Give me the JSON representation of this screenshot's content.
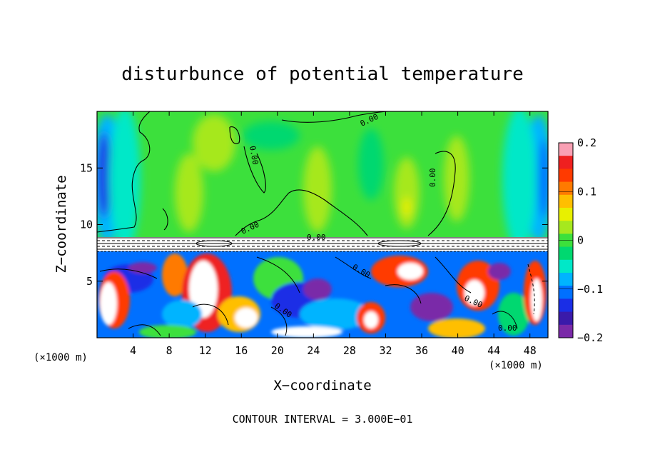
{
  "chart_data": {
    "type": "heatmap",
    "title": "disturbunce of potential temperature",
    "xlabel": "X−coordinate",
    "ylabel": "Z−coordinate",
    "x_unit_left": "(×1000 m)",
    "x_unit_right": "(×1000 m)",
    "footnote": "CONTOUR INTERVAL = 3.000E−01",
    "xlim": [
      0,
      50
    ],
    "ylim": [
      0,
      20
    ],
    "x_ticks": [
      4,
      8,
      12,
      16,
      20,
      24,
      28,
      32,
      36,
      40,
      44,
      48
    ],
    "x_tick_labels": [
      "4",
      "8",
      "12",
      "16",
      "20",
      "24",
      "28",
      "32",
      "36",
      "40",
      "44",
      "48"
    ],
    "y_ticks": [
      5,
      10,
      15
    ],
    "y_tick_labels": [
      "5",
      "10",
      "15"
    ],
    "colorbar": {
      "range": [
        -0.2,
        0.2
      ],
      "ticks": [
        0.2,
        0.1,
        0,
        -0.1,
        -0.2
      ],
      "tick_labels": [
        "0.2",
        "0.1",
        "0",
        "−0.1",
        "−0.2"
      ],
      "colors": [
        "#f9a0b4",
        "#ef2020",
        "#ff3a00",
        "#ff7a00",
        "#ffbf00",
        "#e8f000",
        "#a6e81e",
        "#3ce03c",
        "#00d870",
        "#00e8c8",
        "#00b4ff",
        "#0070ff",
        "#1a2ee6",
        "#3a1aaa",
        "#7a2aa8"
      ]
    },
    "contour_labels": [
      "0.00",
      "0.00",
      "0.00",
      "0.00",
      "0.00",
      "0.00",
      "0.00",
      "0.00",
      "0.00",
      "0.00",
      "0.00",
      "0.00"
    ],
    "grid": false
  }
}
